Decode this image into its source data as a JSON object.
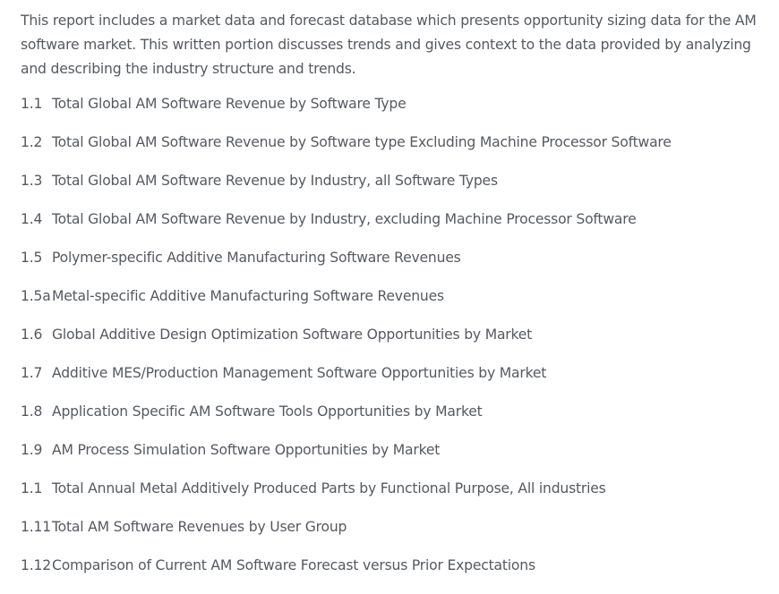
{
  "intro": "This report includes a market data and forecast database which presents opportunity sizing data for the AM software market. This written portion discusses trends and gives context to the data provided by analyzing and describing the industry structure and trends.",
  "items": [
    {
      "num": "1.1",
      "text": "Total Global AM Software Revenue by Software Type"
    },
    {
      "num": "1.2",
      "text": "Total Global AM Software Revenue by Software type Excluding Machine Processor Software"
    },
    {
      "num": "1.3",
      "text": "Total Global AM Software Revenue by Industry, all Software Types"
    },
    {
      "num": "1.4",
      "text": "Total Global AM Software Revenue by Industry, excluding Machine Processor Software"
    },
    {
      "num": "1.5",
      "text": "Polymer-specific Additive Manufacturing Software Revenues"
    },
    {
      "num": "1.5a",
      "text": "Metal-specific Additive Manufacturing Software Revenues"
    },
    {
      "num": "1.6",
      "text": "Global Additive Design Optimization Software Opportunities by Market"
    },
    {
      "num": "1.7",
      "text": "Additive MES/Production Management Software Opportunities by Market"
    },
    {
      "num": "1.8",
      "text": "Application Specific AM Software Tools Opportunities by Market"
    },
    {
      "num": "1.9",
      "text": "AM Process Simulation Software Opportunities by Market"
    },
    {
      "num": "1.1",
      "text": "Total Annual Metal Additively Produced Parts by Functional Purpose, All industries"
    },
    {
      "num": "1.11",
      "text": "Total AM Software Revenues by User Group"
    },
    {
      "num": "1.12",
      "text": "Comparison of Current AM Software Forecast versus Prior Expectations"
    }
  ]
}
